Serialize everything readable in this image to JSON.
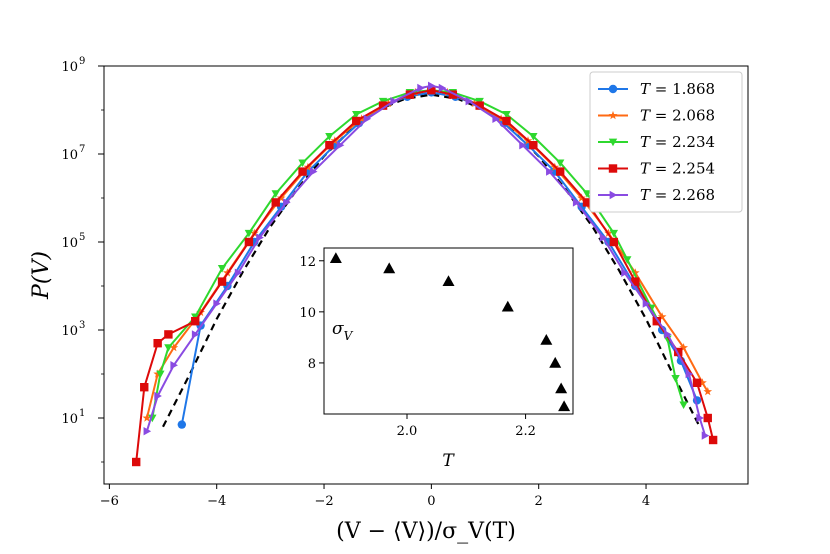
{
  "chart_data": [
    {
      "type": "line",
      "yscale": "log",
      "xlabel": "(V − ⟨V⟩)/σ_V(T)",
      "ylabel": "P(V)",
      "xlim": [
        -6.1,
        5.9
      ],
      "ylim_exponent": [
        -0.5,
        9
      ],
      "xticks": [
        -6,
        -4,
        -2,
        0,
        2,
        4
      ],
      "xtick_labels": [
        "−6",
        "−4",
        "−2",
        "0",
        "2",
        "4"
      ],
      "yticks_exponent": [
        1,
        3,
        5,
        7,
        9
      ],
      "ytick_labels": [
        "10",
        "10",
        "10",
        "10",
        "10"
      ],
      "ytick_exponent_labels": [
        "1",
        "3",
        "5",
        "7",
        "9"
      ],
      "legend_position": "top-right",
      "gaussian_reference": {
        "name": "Gaussian fit",
        "style": "dashed",
        "color": "#000000",
        "x": [
          -5.0,
          -4.5,
          -4.0,
          -3.5,
          -3.0,
          -2.5,
          -2.0,
          -1.5,
          -1.0,
          -0.5,
          0.0,
          0.5,
          1.0,
          1.5,
          2.0,
          2.5,
          3.0,
          3.5,
          4.0,
          4.5,
          5.0
        ],
        "log10_y": [
          0.8,
          2.0,
          3.25,
          4.35,
          5.35,
          6.2,
          6.95,
          7.55,
          8.0,
          8.25,
          8.35,
          8.25,
          8.0,
          7.55,
          6.95,
          6.2,
          5.35,
          4.35,
          3.25,
          2.0,
          0.8
        ]
      },
      "series": [
        {
          "name": "T = 1.868",
          "label_T": "T",
          "label_value": " = 1.868",
          "color": "#1f77e8",
          "marker": "circle",
          "x": [
            -4.65,
            -4.3,
            -3.8,
            -3.3,
            -2.8,
            -2.3,
            -1.8,
            -1.35,
            -0.9,
            -0.45,
            0.0,
            0.45,
            0.9,
            1.35,
            1.8,
            2.3,
            2.8,
            3.3,
            3.8,
            4.3,
            4.65,
            4.95
          ],
          "log10_y": [
            0.85,
            3.1,
            4.0,
            5.0,
            5.8,
            6.6,
            7.2,
            7.7,
            8.1,
            8.3,
            8.4,
            8.3,
            8.1,
            7.7,
            7.2,
            6.6,
            5.8,
            5.0,
            4.0,
            3.0,
            2.3,
            1.4
          ]
        },
        {
          "name": "T = 2.068",
          "label_T": "T",
          "label_value": " = 2.068",
          "color": "#ff6a13",
          "marker": "star",
          "x": [
            -5.3,
            -5.1,
            -4.8,
            -4.3,
            -3.8,
            -3.3,
            -2.8,
            -2.3,
            -1.8,
            -1.3,
            -0.8,
            -0.3,
            0.0,
            0.3,
            0.8,
            1.3,
            1.8,
            2.3,
            2.8,
            3.3,
            3.8,
            4.3,
            4.7,
            5.05,
            5.15
          ],
          "log10_y": [
            1.0,
            2.0,
            2.6,
            3.4,
            4.3,
            5.2,
            6.0,
            6.7,
            7.3,
            7.8,
            8.15,
            8.4,
            8.45,
            8.4,
            8.15,
            7.8,
            7.3,
            6.7,
            6.0,
            5.2,
            4.3,
            3.3,
            2.6,
            1.8,
            1.6
          ]
        },
        {
          "name": "T = 2.234",
          "label_T": "T",
          "label_value": " = 2.234",
          "color": "#2ed82e",
          "marker": "triangle-down",
          "x": [
            -5.2,
            -5.05,
            -4.9,
            -4.4,
            -3.9,
            -3.4,
            -2.9,
            -2.4,
            -1.9,
            -1.4,
            -0.9,
            -0.4,
            0.0,
            0.4,
            0.9,
            1.4,
            1.9,
            2.4,
            2.9,
            3.4,
            3.65,
            4.1,
            4.4,
            4.55,
            4.7
          ],
          "log10_y": [
            1.0,
            2.0,
            2.6,
            3.3,
            4.4,
            5.2,
            6.1,
            6.8,
            7.4,
            7.9,
            8.2,
            8.4,
            8.45,
            8.4,
            8.2,
            7.9,
            7.4,
            6.8,
            6.1,
            5.2,
            4.6,
            3.5,
            2.8,
            1.9,
            1.3
          ]
        },
        {
          "name": "T = 2.254",
          "label_T": "T",
          "label_value": " = 2.254",
          "color": "#dd0a0a",
          "marker": "square",
          "x": [
            -5.5,
            -5.35,
            -5.1,
            -4.9,
            -4.4,
            -3.9,
            -3.4,
            -2.9,
            -2.4,
            -1.9,
            -1.4,
            -0.9,
            -0.4,
            0.0,
            0.4,
            0.9,
            1.4,
            1.9,
            2.4,
            2.9,
            3.4,
            3.8,
            4.2,
            4.6,
            4.95,
            5.15,
            5.25
          ],
          "log10_y": [
            0.0,
            1.7,
            2.7,
            2.9,
            3.2,
            4.1,
            5.0,
            5.9,
            6.6,
            7.2,
            7.75,
            8.1,
            8.35,
            8.45,
            8.35,
            8.1,
            7.75,
            7.2,
            6.6,
            5.9,
            5.0,
            4.1,
            3.2,
            2.5,
            1.8,
            1.0,
            0.5
          ]
        },
        {
          "name": "T = 2.268",
          "label_T": "T",
          "label_value": " = 2.268",
          "color": "#8a4be2",
          "marker": "triangle-right",
          "x": [
            -5.3,
            -5.1,
            -4.8,
            -4.4,
            -4.0,
            -3.6,
            -3.2,
            -2.7,
            -2.2,
            -1.7,
            -1.2,
            -0.7,
            -0.2,
            0.0,
            0.2,
            0.7,
            1.2,
            1.7,
            2.2,
            2.7,
            3.2,
            3.6,
            4.0,
            4.4,
            4.8,
            5.0,
            5.1
          ],
          "log10_y": [
            0.7,
            1.5,
            2.2,
            2.9,
            3.6,
            4.3,
            5.1,
            5.9,
            6.6,
            7.2,
            7.8,
            8.2,
            8.5,
            8.55,
            8.5,
            8.2,
            7.8,
            7.2,
            6.6,
            5.9,
            5.1,
            4.3,
            3.6,
            2.9,
            2.0,
            1.0,
            0.6
          ]
        }
      ]
    },
    {
      "type": "scatter",
      "role": "inset",
      "xlabel": "T",
      "ylabel": "σ",
      "ylabel_subscript": "V",
      "xlim": [
        1.86,
        2.28
      ],
      "ylim": [
        6.0,
        12.5
      ],
      "xticks": [
        2.0,
        2.2
      ],
      "xtick_labels": [
        "2.0",
        "2.2"
      ],
      "yticks": [
        8,
        10,
        12
      ],
      "ytick_labels": [
        "8",
        "10",
        "12"
      ],
      "marker": "triangle-up",
      "color": "#000000",
      "points": [
        {
          "T": 1.88,
          "sigma": 12.1
        },
        {
          "T": 1.97,
          "sigma": 11.7
        },
        {
          "T": 2.07,
          "sigma": 11.2
        },
        {
          "T": 2.17,
          "sigma": 10.2
        },
        {
          "T": 2.235,
          "sigma": 8.9
        },
        {
          "T": 2.25,
          "sigma": 8.0
        },
        {
          "T": 2.26,
          "sigma": 7.0
        },
        {
          "T": 2.265,
          "sigma": 6.3
        }
      ]
    }
  ]
}
